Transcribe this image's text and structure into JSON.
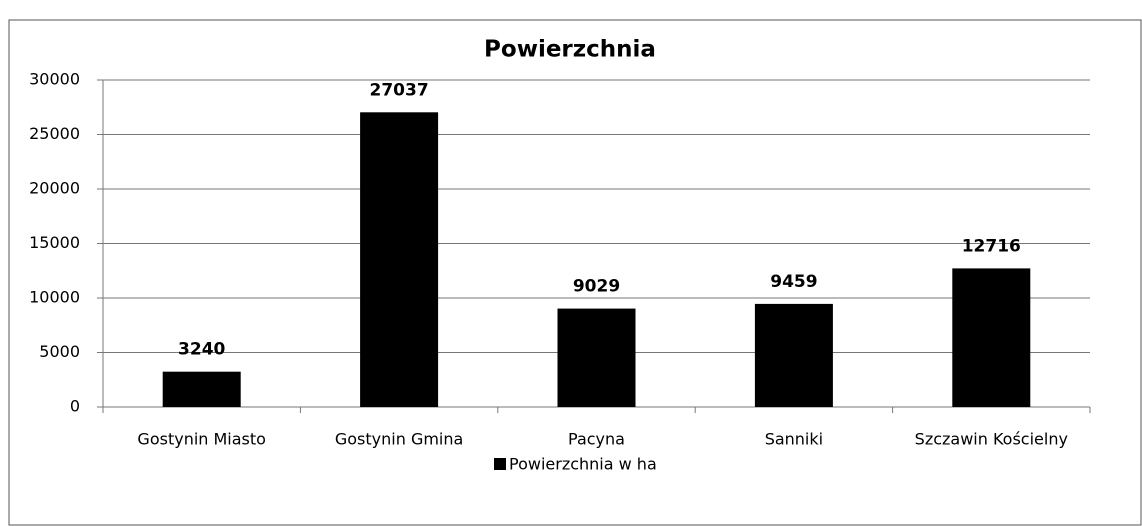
{
  "chart_data": {
    "type": "bar",
    "title": "Powierzchnia",
    "categories": [
      "Gostynin Miasto",
      "Gostynin Gmina",
      "Pacyna",
      "Sanniki",
      "Szczawin Kościelny"
    ],
    "series": [
      {
        "name": "Powierzchnia w ha",
        "color": "#000000",
        "values": [
          3240,
          27037,
          9029,
          9459,
          12716
        ]
      }
    ],
    "ylim": [
      0,
      30000
    ],
    "yticks": [
      0,
      5000,
      10000,
      15000,
      20000,
      25000,
      30000
    ],
    "grid": true,
    "legend": "bottom",
    "data_labels": true
  }
}
